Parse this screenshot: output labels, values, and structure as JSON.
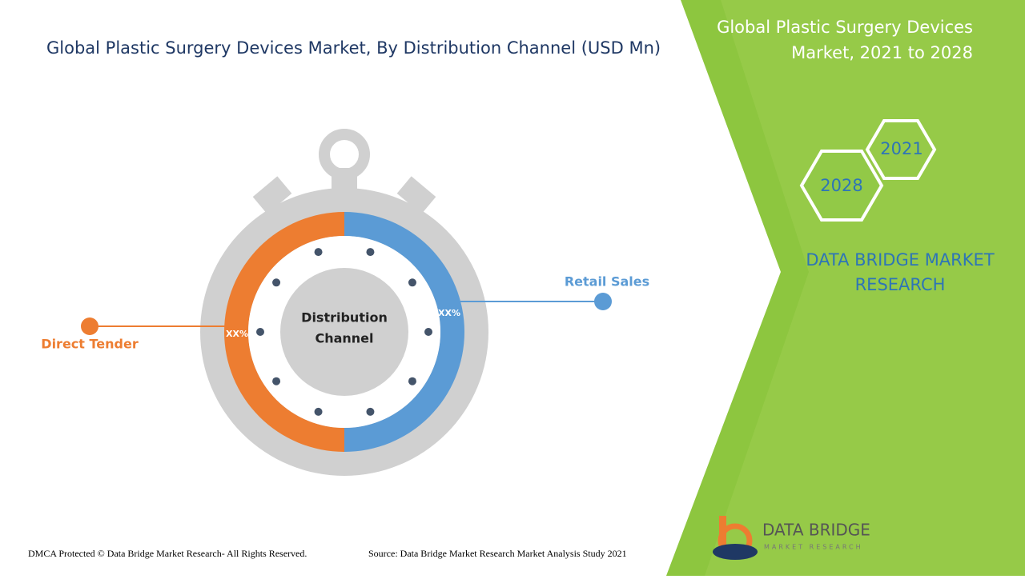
{
  "title": "Global Plastic Surgery Devices Market, By Distribution Channel (USD Mn)",
  "side_panel": {
    "title_lines": [
      "Global Plastic Surgery Devices",
      "Market, 2021 to 2028"
    ],
    "hexagons": [
      "2021",
      "2028"
    ],
    "brand_lines": [
      "DATA BRIDGE MARKET",
      "RESEARCH"
    ]
  },
  "diagram": {
    "center_lines": [
      "Distribution",
      "Channel"
    ],
    "segments": [
      {
        "label": "Retail Sales",
        "value_label": "XX%"
      },
      {
        "label": "Direct Tender",
        "value_label": "XX%"
      }
    ]
  },
  "logo": {
    "name": "DATA BRIDGE",
    "tagline": "MARKET RESEARCH"
  },
  "footer": {
    "copyright": "DMCA Protected © Data Bridge Market Research- All Rights Reserved.",
    "source": "Source: Data Bridge Market Research Market Analysis Study 2021"
  }
}
